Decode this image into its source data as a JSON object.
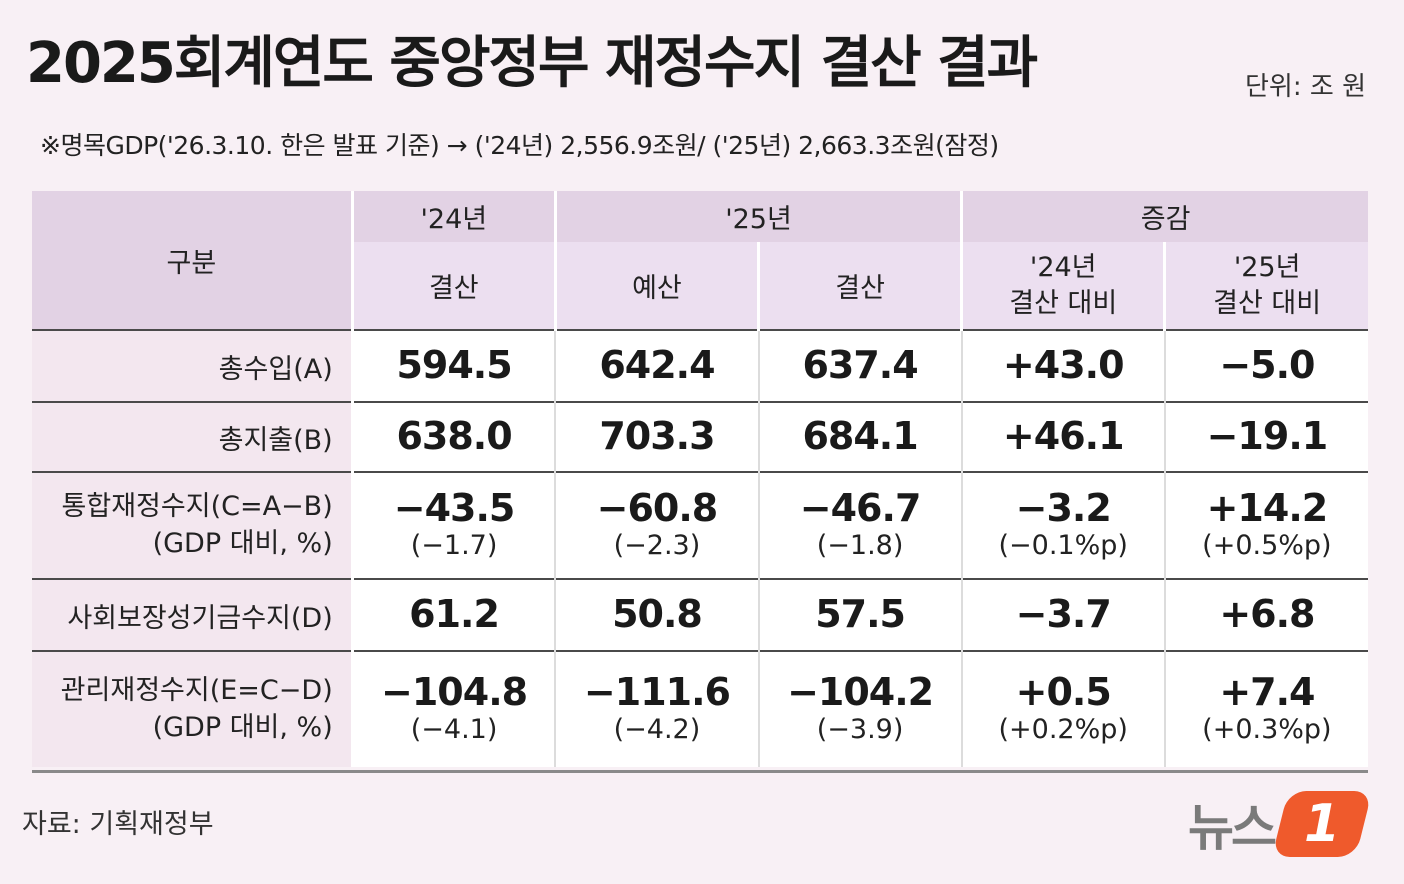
{
  "header": {
    "title": "2025회계연도 중앙정부 재정수지 결산 결과",
    "unit": "단위: 조 원",
    "note": "※명목GDP('26.3.10. 한은 발표 기준) → ('24년) 2,556.9조원/ ('25년) 2,663.3조원(잠정)"
  },
  "table": {
    "corner": "구분",
    "group_headers": [
      "'24년",
      "'25년",
      "증감"
    ],
    "sub_headers": {
      "y24_settle": "결산",
      "y25_budget": "예산",
      "y25_settle": "결산",
      "chg_vs24": [
        "'24년",
        "결산 대비"
      ],
      "chg_vs25": [
        "'25년",
        "결산 대비"
      ]
    }
  },
  "chart_data": {
    "type": "table",
    "title": "2025회계연도 중앙정부 재정수지 결산 결과",
    "unit": "단위: 조 원",
    "columns": [
      "'24년 결산",
      "'25년 예산",
      "'25년 결산",
      "증감 '24년 결산 대비",
      "증감 '25년 결산 대비"
    ],
    "rows": [
      {
        "label": "총수입(A)",
        "values": [
          "594.5",
          "642.4",
          "637.4",
          "+43.0",
          "−5.0"
        ]
      },
      {
        "label": "총지출(B)",
        "values": [
          "638.0",
          "703.3",
          "684.1",
          "+46.1",
          "−19.1"
        ]
      },
      {
        "label": "통합재정수지(C=A−B)",
        "sublabel": "(GDP 대비, %)",
        "values": [
          "−43.5",
          "−60.8",
          "−46.7",
          "−3.2",
          "+14.2"
        ],
        "ratios": [
          "(−1.7)",
          "(−2.3)",
          "(−1.8)",
          "(−0.1%p)",
          "(+0.5%p)"
        ]
      },
      {
        "label": "사회보장성기금수지(D)",
        "values": [
          "61.2",
          "50.8",
          "57.5",
          "−3.7",
          "+6.8"
        ]
      },
      {
        "label": "관리재정수지(E=C−D)",
        "sublabel": "(GDP 대비, %)",
        "values": [
          "−104.8",
          "−111.6",
          "−104.2",
          "+0.5",
          "+7.4"
        ],
        "ratios": [
          "(−4.1)",
          "(−4.2)",
          "(−3.9)",
          "(+0.2%p)",
          "(+0.3%p)"
        ]
      }
    ]
  },
  "footer": {
    "source": "자료: 기획재정부",
    "logo_text": "뉴스",
    "logo_badge": "1"
  },
  "colors": {
    "background": "#f8f0f5",
    "header_fill": "#e2d2e4",
    "label_fill": "#f3e7ef",
    "logo_accent": "#ef5a2c"
  }
}
